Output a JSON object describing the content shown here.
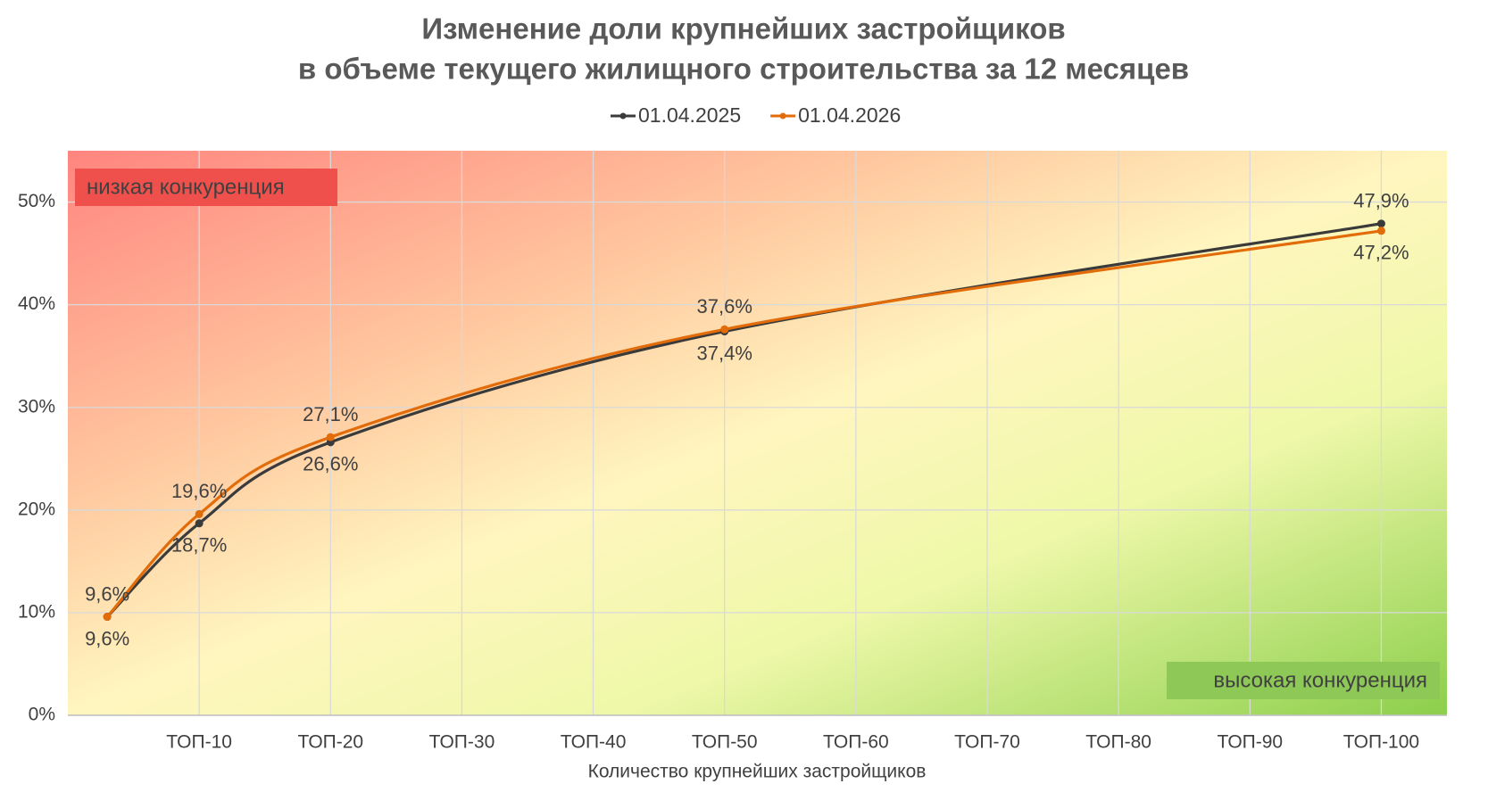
{
  "chart_data": {
    "type": "line",
    "title": [
      "Изменение доли крупнейших застройщиков",
      "в объеме текущего жилищного строительства за 12 месяцев"
    ],
    "x_label": "Количество крупнейших застройщиков",
    "annotations": [
      "низкая конкуренция",
      "высокая конкуренция"
    ],
    "x": [
      3,
      10,
      20,
      50,
      100
    ],
    "series": [
      {
        "name": "01.04.2025",
        "color": "#3a3a3a",
        "values": [
          9.6,
          18.7,
          26.6,
          37.4,
          47.9
        ],
        "value_labels": [
          "9,6%",
          "18,7%",
          "26,6%",
          "37,4%",
          "47,9%"
        ]
      },
      {
        "name": "01.04.2026",
        "color": "#e36c0a",
        "values": [
          9.6,
          19.6,
          27.1,
          37.6,
          47.2
        ],
        "value_labels": [
          "9,6%",
          "19,6%",
          "27,1%",
          "37,6%",
          "47,2%"
        ]
      }
    ],
    "xlim": [
      0,
      105
    ],
    "xticks": [
      {
        "value": 10,
        "label": "ТОП-10"
      },
      {
        "value": 20,
        "label": "ТОП-20"
      },
      {
        "value": 30,
        "label": "ТОП-30"
      },
      {
        "value": 40,
        "label": "ТОП-40"
      },
      {
        "value": 50,
        "label": "ТОП-50"
      },
      {
        "value": 60,
        "label": "ТОП-60"
      },
      {
        "value": 70,
        "label": "ТОП-70"
      },
      {
        "value": 80,
        "label": "ТОП-80"
      },
      {
        "value": 90,
        "label": "ТОП-90"
      },
      {
        "value": 100,
        "label": "ТОП-100"
      }
    ],
    "ylim": [
      0,
      55
    ],
    "yticks": [
      {
        "value": 0,
        "label": "0%"
      },
      {
        "value": 10,
        "label": "10%"
      },
      {
        "value": 20,
        "label": "20%"
      },
      {
        "value": 30,
        "label": "30%"
      },
      {
        "value": 40,
        "label": "40%"
      },
      {
        "value": 50,
        "label": "50%"
      }
    ],
    "grid": true,
    "legend": "top"
  }
}
